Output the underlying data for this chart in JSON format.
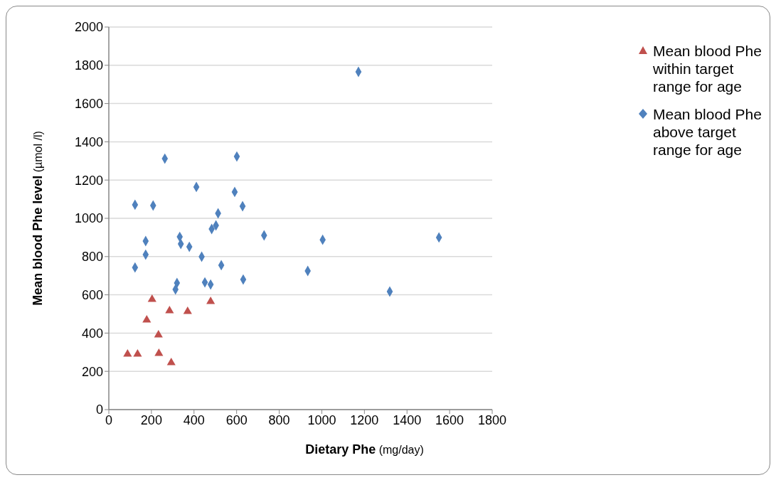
{
  "chart_data": {
    "type": "scatter",
    "xlabel": "**Dietary Phe** (mg/day)",
    "ylabel": "**Mean blood Phe level** (µmol /l)",
    "xlim": [
      0,
      1800
    ],
    "xticks": [
      0,
      200,
      400,
      600,
      800,
      1000,
      1200,
      1400,
      1600,
      1800
    ],
    "ylim": [
      0,
      2000
    ],
    "yticks": [
      0,
      200,
      400,
      600,
      800,
      1000,
      1200,
      1400,
      1600,
      1800,
      2000
    ],
    "grid": "y",
    "legend": "top right",
    "series": [
      {
        "name": "Mean blood Phe within target range for age",
        "color": "#c0504d",
        "marker": "triangle",
        "x": [
          88,
          135,
          178,
          203,
          233,
          235,
          285,
          293,
          370,
          478
        ],
        "values": [
          290,
          290,
          468,
          576,
          390,
          294,
          517,
          245,
          513,
          565
        ]
      },
      {
        "name": "Mean blood Phe above target range for age",
        "color": "#4f81bd",
        "marker": "diamond",
        "x": [
          123,
          123,
          173,
          173,
          208,
          263,
          313,
          320,
          333,
          338,
          378,
          411,
          436,
          451,
          478,
          483,
          503,
          513,
          528,
          591,
          601,
          628,
          631,
          729,
          934,
          1004,
          1172,
          1319,
          1550
        ],
        "values": [
          743,
          1071,
          881,
          810,
          1067,
          1312,
          628,
          662,
          903,
          866,
          851,
          1164,
          799,
          665,
          654,
          944,
          963,
          1026,
          755,
          1138,
          1323,
          1063,
          680,
          911,
          725,
          888,
          1766,
          617,
          900
        ]
      }
    ]
  }
}
